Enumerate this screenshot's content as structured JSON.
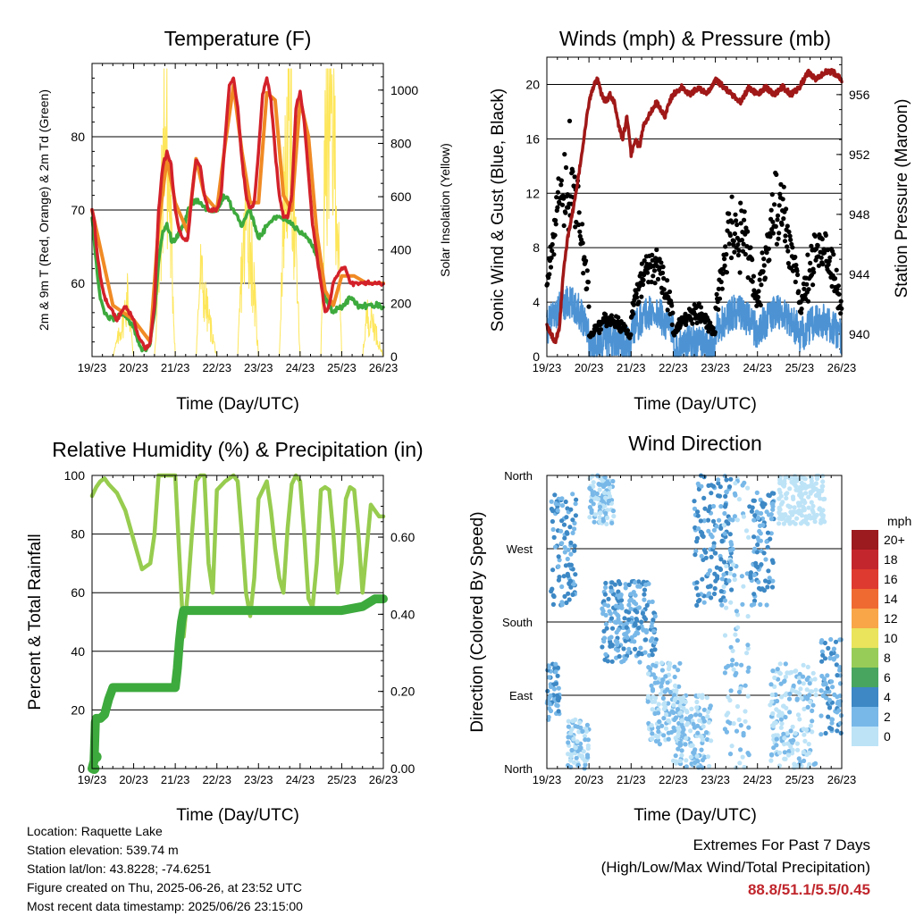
{
  "colors": {
    "red_t2m": "#d3212a",
    "orange_t9m": "#f08a24",
    "green_td": "#3daa3d",
    "yellow_solar": "#fde65a",
    "blue_wind": "#4d93d4",
    "black_gust": "#000000",
    "maroon_pressure": "#a01818",
    "rh_light_green": "#97cc4f",
    "precip_green": "#3daa3d"
  },
  "x_ticks": [
    "19/23",
    "20/23",
    "21/23",
    "22/23",
    "23/23",
    "24/23",
    "25/23",
    "26/23"
  ],
  "chart_data": [
    {
      "id": "temperature",
      "type": "line",
      "title": "Temperature (F)",
      "xlabel": "Time (Day/UTC)",
      "ylabel": "2m & 9m T (Red, Orange) & 2m Td (Green)",
      "y2label": "Solar Insolation (Yellow)",
      "xlim": [
        0,
        7
      ],
      "ylim": [
        50,
        90
      ],
      "y2lim": [
        0,
        1100
      ],
      "yticks": [
        60,
        70,
        80
      ],
      "y2ticks": [
        0,
        200,
        400,
        600,
        800,
        1000
      ],
      "grid": true,
      "series": [
        {
          "key": "t2m",
          "axis": "left",
          "color": "#d3212a",
          "x": [
            0,
            0.05,
            0.1,
            0.2,
            0.3,
            0.4,
            0.5,
            0.6,
            0.7,
            0.8,
            0.9,
            1.0,
            1.1,
            1.2,
            1.3,
            1.4,
            1.5,
            1.6,
            1.7,
            1.8,
            1.9,
            2.0,
            2.1,
            2.2,
            2.3,
            2.4,
            2.5,
            2.6,
            2.7,
            2.8,
            2.9,
            3.0,
            3.1,
            3.2,
            3.3,
            3.4,
            3.5,
            3.6,
            3.7,
            3.8,
            3.9,
            4.0,
            4.1,
            4.2,
            4.3,
            4.4,
            4.5,
            4.6,
            4.7,
            4.8,
            4.9,
            5.0,
            5.1,
            5.2,
            5.3,
            5.4,
            5.5,
            5.6,
            5.7,
            5.8,
            5.9,
            6.0,
            6.1,
            6.2,
            6.3,
            6.4,
            6.5,
            6.6,
            6.7,
            6.8,
            6.9,
            7.0
          ],
          "y": [
            70,
            69,
            65,
            61,
            58,
            57,
            56,
            55,
            56,
            57,
            56,
            55,
            53,
            52,
            51,
            52,
            57,
            70,
            76,
            78,
            76,
            70,
            67,
            66,
            66,
            72,
            77,
            76,
            72,
            70,
            70,
            70,
            72,
            80,
            87,
            88,
            84,
            77,
            72,
            70,
            71,
            78,
            86,
            88,
            85,
            78,
            72,
            69,
            69,
            72,
            84,
            86,
            82,
            75,
            68,
            64,
            60,
            56,
            57,
            60,
            61,
            62,
            62,
            60,
            60,
            60,
            60,
            60,
            60,
            60,
            60,
            60
          ]
        },
        {
          "key": "t9m",
          "axis": "left",
          "color": "#f08a24",
          "x": [
            0,
            0.5,
            1.0,
            1.4,
            1.6,
            1.8,
            2.0,
            2.3,
            2.5,
            2.7,
            3.0,
            3.2,
            3.4,
            3.6,
            3.8,
            4.0,
            4.2,
            4.4,
            4.6,
            4.8,
            5.0,
            5.2,
            5.4,
            5.6,
            5.8,
            6.0,
            6.3,
            6.6,
            7.0
          ],
          "y": [
            70,
            57,
            55,
            52,
            68,
            77,
            71,
            67,
            77,
            72,
            70,
            79,
            87,
            78,
            71,
            71,
            86,
            85,
            72,
            70,
            85,
            80,
            67,
            59,
            57,
            61,
            61,
            60,
            60
          ]
        },
        {
          "key": "td2m",
          "axis": "left",
          "color": "#3daa3d",
          "x": [
            0,
            0.1,
            0.2,
            0.3,
            0.5,
            0.7,
            0.9,
            1.0,
            1.1,
            1.2,
            1.3,
            1.4,
            1.5,
            1.6,
            1.7,
            1.8,
            1.9,
            2.0,
            2.2,
            2.4,
            2.6,
            2.8,
            3.0,
            3.2,
            3.4,
            3.6,
            3.8,
            4.0,
            4.2,
            4.4,
            4.6,
            4.8,
            5.0,
            5.2,
            5.4,
            5.6,
            5.8,
            6.0,
            6.2,
            6.4,
            6.6,
            6.8,
            7.0
          ],
          "y": [
            69,
            63,
            58,
            56,
            55,
            56,
            55,
            54,
            52,
            51,
            51,
            52,
            56,
            63,
            67,
            68,
            66,
            66,
            68,
            71,
            71,
            70,
            70,
            72,
            70,
            68,
            70,
            66,
            68,
            69,
            69,
            68,
            67,
            66,
            64,
            58,
            56,
            57,
            58,
            57,
            57,
            57,
            57
          ]
        },
        {
          "key": "solar",
          "axis": "right",
          "color": "#fde65a",
          "x": [
            0.0,
            0.25,
            0.5,
            0.75,
            0.85,
            0.95,
            1.0,
            1.25,
            1.5,
            1.6,
            1.75,
            1.9,
            2.0,
            2.2,
            2.35,
            2.5,
            2.6,
            2.75,
            2.85,
            3.0,
            3.25,
            3.5,
            3.6,
            3.75,
            3.85,
            4.0,
            4.25,
            4.5,
            4.6,
            4.75,
            4.85,
            5.0,
            5.25,
            5.5,
            5.6,
            5.75,
            5.85,
            6.0,
            6.25,
            6.5,
            6.6,
            6.75,
            6.85,
            7.0
          ],
          "y": [
            0,
            0,
            0,
            150,
            250,
            80,
            0,
            0,
            0,
            300,
            1000,
            500,
            0,
            0,
            0,
            0,
            350,
            200,
            120,
            0,
            0,
            0,
            380,
            580,
            380,
            0,
            0,
            0,
            620,
            1020,
            600,
            0,
            0,
            0,
            800,
            1010,
            820,
            0,
            0,
            0,
            170,
            150,
            80,
            0
          ]
        }
      ]
    },
    {
      "id": "winds_pressure",
      "type": "scatter",
      "title": "Winds (mph) & Pressure (mb)",
      "xlabel": "Time (Day/UTC)",
      "ylabel": "Sonic Wind & Gust (Blue, Black)",
      "y2label": "Station Pressure (Maroon)",
      "xlim": [
        0,
        7
      ],
      "ylim": [
        0,
        22
      ],
      "y2lim": [
        938.5,
        958.5
      ],
      "yticks": [
        0,
        4,
        8,
        12,
        16,
        20
      ],
      "y2ticks": [
        940,
        944,
        948,
        952,
        956
      ],
      "grid": true,
      "wind_daily_mean": [
        3.0,
        1.0,
        2.5,
        0.8,
        2.5,
        2.5,
        2.0
      ],
      "gust_daily_center": [
        10,
        1.5,
        5,
        2,
        7,
        8,
        6
      ],
      "pressure": {
        "color": "#a01818",
        "x": [
          0,
          0.1,
          0.2,
          0.3,
          0.4,
          0.5,
          0.6,
          0.7,
          0.8,
          0.9,
          1.0,
          1.1,
          1.2,
          1.3,
          1.4,
          1.5,
          1.6,
          1.7,
          1.8,
          1.9,
          2.0,
          2.1,
          2.2,
          2.3,
          2.4,
          2.5,
          2.6,
          2.7,
          2.8,
          2.9,
          3.0,
          3.2,
          3.4,
          3.6,
          3.8,
          4.0,
          4.2,
          4.4,
          4.6,
          4.8,
          5.0,
          5.2,
          5.4,
          5.6,
          5.8,
          6.0,
          6.2,
          6.4,
          6.6,
          6.8,
          7.0
        ],
        "y": [
          940.5,
          940.0,
          939.5,
          940.5,
          944.5,
          946.5,
          948.0,
          949.5,
          951.5,
          953.5,
          955.5,
          956.5,
          957.0,
          956.0,
          955.5,
          956.0,
          955.5,
          954.0,
          953.0,
          954.5,
          952.0,
          953.0,
          952.5,
          954.0,
          954.5,
          955.0,
          955.5,
          955.0,
          954.5,
          955.5,
          956.0,
          956.5,
          956.0,
          956.5,
          956.0,
          957.0,
          956.5,
          956.0,
          955.5,
          956.5,
          956.0,
          956.5,
          956.0,
          956.5,
          956.0,
          956.5,
          957.5,
          957.0,
          957.5,
          957.5,
          957.0
        ]
      }
    },
    {
      "id": "rh_precip",
      "type": "line",
      "title": "Relative Humidity (%) & Precipitation (in)",
      "xlabel": "Time (Day/UTC)",
      "ylabel": "Percent & Total Rainfall",
      "xlim": [
        0,
        7
      ],
      "ylim": [
        0,
        100
      ],
      "y2lim": [
        0,
        0.76
      ],
      "yticks": [
        0,
        20,
        40,
        60,
        80,
        100
      ],
      "y2ticks": [
        0.0,
        0.2,
        0.4,
        0.6
      ],
      "grid": true,
      "series": [
        {
          "key": "rh",
          "axis": "left",
          "color": "#97cc4f",
          "x": [
            0,
            0.1,
            0.2,
            0.3,
            0.4,
            0.6,
            0.8,
            1.0,
            1.2,
            1.4,
            1.5,
            1.6,
            1.7,
            1.8,
            1.9,
            2.0,
            2.1,
            2.2,
            2.3,
            2.4,
            2.5,
            2.6,
            2.7,
            2.8,
            2.9,
            3.0,
            3.2,
            3.4,
            3.5,
            3.6,
            3.7,
            3.8,
            3.9,
            4.0,
            4.2,
            4.3,
            4.4,
            4.5,
            4.6,
            4.7,
            4.8,
            4.9,
            5.0,
            5.1,
            5.2,
            5.3,
            5.4,
            5.5,
            5.6,
            5.7,
            5.8,
            5.9,
            6.0,
            6.1,
            6.2,
            6.3,
            6.4,
            6.5,
            6.6,
            6.7,
            6.8,
            6.9,
            7.0
          ],
          "y": [
            93,
            96,
            98,
            99,
            97,
            94,
            88,
            78,
            68,
            70,
            80,
            100,
            100,
            100,
            100,
            100,
            72,
            45,
            60,
            80,
            98,
            100,
            100,
            70,
            60,
            95,
            98,
            100,
            98,
            80,
            60,
            52,
            65,
            92,
            98,
            88,
            75,
            65,
            60,
            82,
            97,
            100,
            98,
            80,
            58,
            55,
            70,
            95,
            96,
            95,
            80,
            60,
            70,
            92,
            96,
            95,
            80,
            60,
            75,
            90,
            88,
            86,
            86
          ]
        },
        {
          "key": "precip",
          "axis": "right",
          "color": "#3daa3d",
          "x": [
            0,
            0.05,
            0.08,
            0.1,
            0.2,
            0.3,
            0.4,
            0.5,
            1.0,
            1.5,
            1.9,
            2.0,
            2.05,
            2.1,
            2.15,
            2.2,
            2.3,
            3.0,
            4.0,
            5.0,
            6.0,
            6.5,
            6.8,
            7.0
          ],
          "y": [
            0.0,
            0.02,
            0.12,
            0.13,
            0.13,
            0.14,
            0.18,
            0.21,
            0.21,
            0.21,
            0.21,
            0.21,
            0.26,
            0.33,
            0.38,
            0.41,
            0.41,
            0.41,
            0.41,
            0.41,
            0.41,
            0.42,
            0.44,
            0.44
          ]
        }
      ]
    },
    {
      "id": "wind_direction",
      "type": "scatter",
      "title": "Wind Direction",
      "xlabel": "Time (Day/UTC)",
      "ylabel": "Direction (Colored By Speed)",
      "xlim": [
        0,
        7
      ],
      "ylim": [
        0,
        360
      ],
      "ytick_labels": [
        "North",
        "East",
        "South",
        "West",
        "North"
      ],
      "grid": true,
      "legend": {
        "title": "mph",
        "placement": "right",
        "labels": [
          "20+",
          "18",
          "16",
          "14",
          "12",
          "10",
          "8",
          "6",
          "4",
          "2",
          "0"
        ],
        "colors": [
          "#9b1b1f",
          "#c4262d",
          "#df3a2f",
          "#ef6a31",
          "#f8a648",
          "#e9e45c",
          "#98cc58",
          "#47a55f",
          "#3d88c5",
          "#78b8e8",
          "#bde3f7"
        ]
      },
      "direction_clusters": [
        {
          "x": [
            0.0,
            0.3
          ],
          "dir": [
            60,
            130
          ],
          "speed": [
            2,
            4
          ]
        },
        {
          "x": [
            0.1,
            0.7
          ],
          "dir": [
            200,
            340
          ],
          "speed": [
            2,
            5
          ]
        },
        {
          "x": [
            0.5,
            1.0
          ],
          "dir": [
            0,
            60
          ],
          "speed": [
            0,
            2
          ]
        },
        {
          "x": [
            1.0,
            1.6
          ],
          "dir": [
            300,
            360
          ],
          "speed": [
            0,
            2
          ]
        },
        {
          "x": [
            1.3,
            2.6
          ],
          "dir": [
            130,
            230
          ],
          "speed": [
            2,
            4
          ]
        },
        {
          "x": [
            2.4,
            3.2
          ],
          "dir": [
            30,
            130
          ],
          "speed": [
            0,
            2
          ]
        },
        {
          "x": [
            3.0,
            3.9
          ],
          "dir": [
            0,
            90
          ],
          "speed": [
            0,
            2
          ]
        },
        {
          "x": [
            3.5,
            4.4
          ],
          "dir": [
            200,
            360
          ],
          "speed": [
            2,
            5
          ]
        },
        {
          "x": [
            4.2,
            4.8
          ],
          "dir": [
            0,
            360
          ],
          "speed": [
            0,
            3
          ]
        },
        {
          "x": [
            4.8,
            5.4
          ],
          "dir": [
            200,
            340
          ],
          "speed": [
            2,
            4
          ]
        },
        {
          "x": [
            5.5,
            6.6
          ],
          "dir": [
            300,
            360
          ],
          "speed": [
            0,
            1
          ]
        },
        {
          "x": [
            5.3,
            6.4
          ],
          "dir": [
            0,
            130
          ],
          "speed": [
            0,
            2
          ]
        },
        {
          "x": [
            6.5,
            7.0
          ],
          "dir": [
            40,
            160
          ],
          "speed": [
            1,
            4
          ]
        }
      ]
    }
  ],
  "station_info": {
    "location": "Location: Raquette Lake",
    "elevation": "Station elevation: 539.74 m",
    "latlon": "Station lat/lon: 43.8228; -74.6251",
    "created": "Figure created on Thu, 2025-06-26, at 23:52 UTC",
    "latest": "Most recent data timestamp: 2025/06/26 23:15:00"
  },
  "extremes": {
    "title": "Extremes For Past 7 Days",
    "subtitle": "(High/Low/Max Wind/Total Precipitation)",
    "values": "88.8/51.1/5.5/0.45"
  }
}
